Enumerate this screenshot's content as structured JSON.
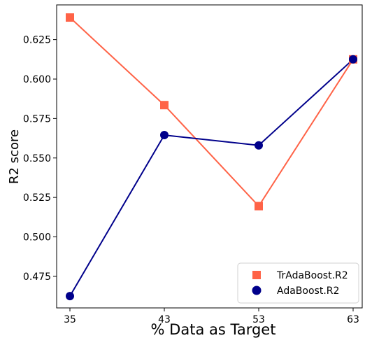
{
  "chart_data": {
    "type": "line",
    "x": [
      35,
      43,
      53,
      63
    ],
    "xlabel": "% Data as Target",
    "ylabel": "R2 score",
    "ylim": [
      0.455,
      0.647
    ],
    "yticks": [
      0.475,
      0.5,
      0.525,
      0.55,
      0.575,
      0.6,
      0.625
    ],
    "ytick_labels": [
      "0.475",
      "0.500",
      "0.525",
      "0.550",
      "0.575",
      "0.600",
      "0.625"
    ],
    "xtick_labels": [
      "35",
      "43",
      "53",
      "63"
    ],
    "grid": false,
    "legend_position": "bottom-right",
    "series": [
      {
        "name": "TrAdaBoost.R2",
        "marker": "square",
        "color": "#ff6347",
        "values": [
          0.639,
          0.5835,
          0.5195,
          0.6125
        ]
      },
      {
        "name": "AdaBoost.R2",
        "marker": "circle",
        "color": "#00008b",
        "values": [
          0.4625,
          0.5645,
          0.558,
          0.6125
        ]
      }
    ]
  }
}
